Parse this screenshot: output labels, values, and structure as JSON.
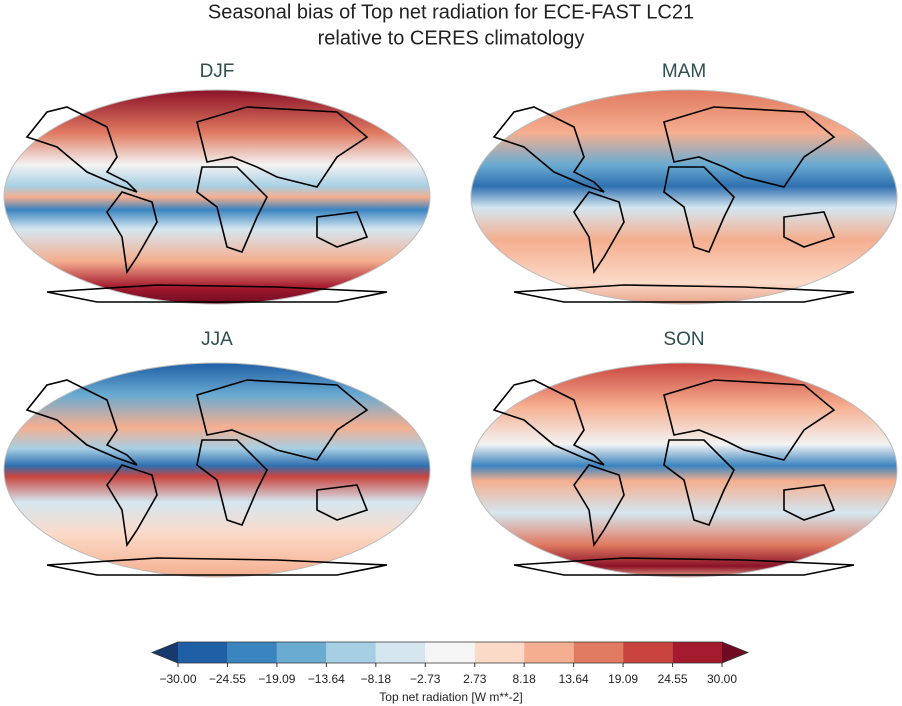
{
  "title": [
    "Seasonal bias of Top net radiation for ECE-FAST LC21",
    "relative to CERES climatology"
  ],
  "panels": [
    {
      "title": "DJF"
    },
    {
      "title": "MAM"
    },
    {
      "title": "JJA"
    },
    {
      "title": "SON"
    }
  ],
  "colorbar": {
    "label": "Top net radiation [W m**-2]",
    "xlim": [
      -30,
      30
    ],
    "ticks": [
      {
        "value": -30,
        "label": "−30.00"
      },
      {
        "value": -24.55,
        "label": "−24.55"
      },
      {
        "value": -19.09,
        "label": "−19.09"
      },
      {
        "value": -13.64,
        "label": "−13.64"
      },
      {
        "value": -8.18,
        "label": "−8.18"
      },
      {
        "value": -2.73,
        "label": "−2.73"
      },
      {
        "value": 2.73,
        "label": "2.73"
      },
      {
        "value": 8.18,
        "label": "8.18"
      },
      {
        "value": 13.64,
        "label": "13.64"
      },
      {
        "value": 19.09,
        "label": "19.09"
      },
      {
        "value": 24.55,
        "label": "24.55"
      },
      {
        "value": 30,
        "label": "30.00"
      }
    ],
    "colors": [
      "#1f5fa6",
      "#3a84c0",
      "#6aabd2",
      "#a7cfe4",
      "#d5e6f0",
      "#f5f5f5",
      "#fbdac8",
      "#f5ae8f",
      "#e07a61",
      "#c9443f",
      "#a51b2e"
    ],
    "extend_colors": [
      "#173a6e",
      "#6f0a22"
    ]
  }
}
